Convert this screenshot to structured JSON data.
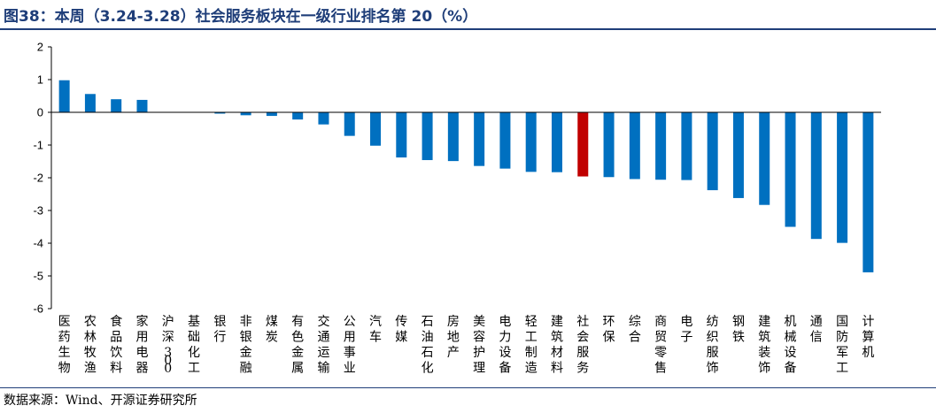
{
  "title": "图38：本周（3.24-3.28）社会服务板块在一级行业排名第 20（%）",
  "source": "数据来源：Wind、开源证券研究所",
  "colors": {
    "bar": "#0070c0",
    "highlight": "#c00000",
    "title": "#1f3e79"
  },
  "chart_data": {
    "type": "bar",
    "categories": [
      "医药生物",
      "农林牧渔",
      "食品饮料",
      "家用电器",
      "沪深300",
      "基础化工",
      "银行",
      "非银金融",
      "煤炭",
      "有色金属",
      "交通运输",
      "公用事业",
      "汽车",
      "传媒",
      "石油石化",
      "房地产",
      "美容护理",
      "电力设备",
      "轻工制造",
      "建筑材料",
      "社会服务",
      "环保",
      "综合",
      "商贸零售",
      "电子",
      "纺织服饰",
      "钢铁",
      "建筑装饰",
      "机械设备",
      "通信",
      "国防军工",
      "计算机"
    ],
    "values": [
      0.98,
      0.56,
      0.4,
      0.38,
      0.0,
      0.0,
      -0.04,
      -0.09,
      -0.11,
      -0.22,
      -0.37,
      -0.72,
      -1.02,
      -1.38,
      -1.46,
      -1.49,
      -1.64,
      -1.72,
      -1.82,
      -1.83,
      -1.96,
      -1.98,
      -2.04,
      -2.06,
      -2.07,
      -2.38,
      -2.62,
      -2.83,
      -3.5,
      -3.87,
      -3.99,
      -4.89
    ],
    "highlight": "社会服务",
    "ylim": [
      -6,
      2
    ],
    "yticks": [
      2,
      1,
      0,
      -1,
      -2,
      -3,
      -4,
      -5,
      -6
    ],
    "xlabel": "",
    "ylabel": "",
    "grid": false,
    "legend": "none"
  }
}
